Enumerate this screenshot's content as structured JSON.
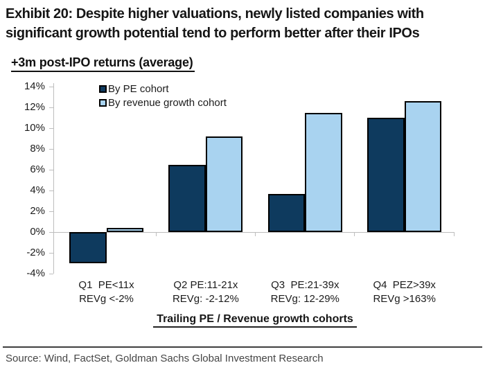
{
  "header": {
    "line1": "Exhibit 20: Despite higher valuations, newly listed companies with",
    "line2": "significant growth potential tend to perform better after their IPOs"
  },
  "subtitle": "+3m post-IPO returns (average)",
  "source": "Source: Wind, FactSet, Goldman Sachs Global Investment Research",
  "colors": {
    "pe_bar": "#0e3a5e",
    "revg_bar": "#a9d3f0",
    "bar_border": "#000000",
    "axis": "#bdbdbd",
    "text": "#1b1b1b"
  },
  "chart_data": {
    "type": "bar",
    "title": "+3m post-IPO returns (average)",
    "categories": [
      {
        "line1": "Q1  PE<11x",
        "line2": "REVg <-2%"
      },
      {
        "line1": "Q2 PE:11-21x",
        "line2": "REVg: -2-12%"
      },
      {
        "line1": "Q3  PE:21-39x",
        "line2": "REVg: 12-29%"
      },
      {
        "line1": "Q4  PEZ>39x",
        "line2": "REVg >163%"
      }
    ],
    "series": [
      {
        "name": "By PE cohort",
        "color": "#0e3a5e",
        "values": [
          -3.0,
          6.5,
          3.7,
          11.0
        ]
      },
      {
        "name": "By revenue growth cohort",
        "color": "#a9d3f0",
        "values": [
          0.4,
          9.2,
          11.5,
          12.6
        ]
      }
    ],
    "xlabel": "Trailing PE / Revenue growth cohorts",
    "ylabel": "",
    "ylim": [
      -4,
      14
    ],
    "ytick_step": 2,
    "ytick_labels": [
      "14%",
      "12%",
      "10%",
      "8%",
      "6%",
      "4%",
      "2%",
      "0%",
      "-2%",
      "-4%"
    ],
    "grid": false,
    "legend_position": "top-left-inside"
  }
}
